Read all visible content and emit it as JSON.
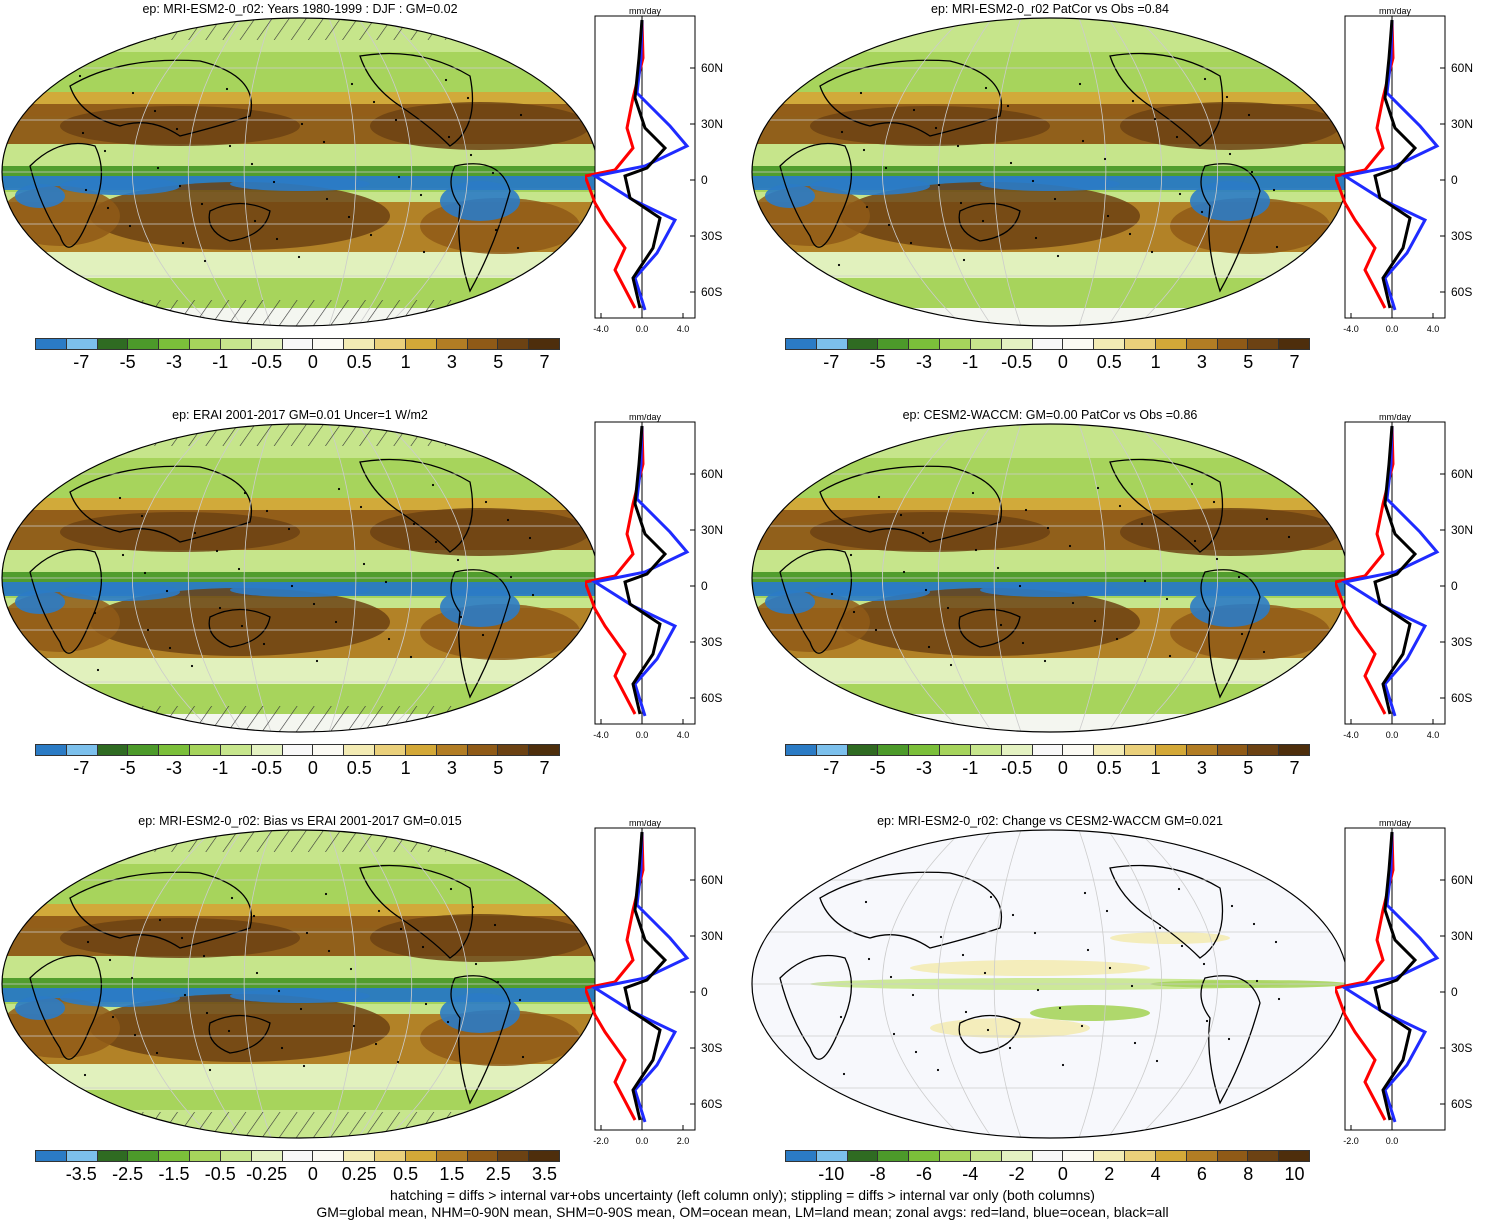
{
  "colorbar_colors": [
    "#2b7bc5",
    "#7cc0ec",
    "#2f6b22",
    "#4c9a2a",
    "#7bbf3a",
    "#a6d45c",
    "#c7e68d",
    "#e4f2c2",
    "#f8f8f8",
    "#fbfaf3",
    "#f3ebb4",
    "#ead07b",
    "#d3a838",
    "#b27d24",
    "#8f5a17",
    "#6c4213",
    "#4e2e0c"
  ],
  "legend": {
    "hatching": "hatching = diffs > internal var+obs uncertainty (left column only); stippling = diffs > internal var only (both columns)",
    "means": "GM=global mean, NHM=0-90N mean, SHM=0-90S mean, OM=ocean mean, LM=land mean; zonal avgs: red=land, blue=ocean, black=all"
  },
  "lat_labels": [
    "60N",
    "30N",
    "0",
    "30S",
    "60S"
  ],
  "zonal_unit": "mm/day",
  "panels": [
    {
      "title": "ep: MRI-ESM2-0_r02: Years 1980-1999 : DJF : GM=0.02",
      "colorbar_labels": [
        "-7",
        "-5",
        "-3",
        "-1",
        "-0.5",
        "0",
        "0.5",
        "1",
        "3",
        "5",
        "7"
      ],
      "x_ticks": [
        "-4.0",
        "0.0",
        "4.0"
      ]
    },
    {
      "title": "ep: MRI-ESM2-0_r02 PatCor vs Obs =0.84",
      "colorbar_labels": [
        "-7",
        "-5",
        "-3",
        "-1",
        "-0.5",
        "0",
        "0.5",
        "1",
        "3",
        "5",
        "7"
      ],
      "x_ticks": [
        "-4.0",
        "0.0",
        "4.0"
      ]
    },
    {
      "title": "ep: ERAI 2001-2017 GM=0.01 Uncer=1 W/m2",
      "colorbar_labels": [
        "-7",
        "-5",
        "-3",
        "-1",
        "-0.5",
        "0",
        "0.5",
        "1",
        "3",
        "5",
        "7"
      ],
      "x_ticks": [
        "-4.0",
        "0.0",
        "4.0"
      ]
    },
    {
      "title": "ep: CESM2-WACCM: GM=0.00 PatCor vs Obs =0.86",
      "colorbar_labels": [
        "-7",
        "-5",
        "-3",
        "-1",
        "-0.5",
        "0",
        "0.5",
        "1",
        "3",
        "5",
        "7"
      ],
      "x_ticks": [
        "-4.0",
        "0.0",
        "4.0"
      ]
    },
    {
      "title": "ep: MRI-ESM2-0_r02: Bias vs ERAI 2001-2017 GM=0.015",
      "colorbar_labels": [
        "-3.5",
        "-2.5",
        "-1.5",
        "-0.5",
        "-0.25",
        "0",
        "0.25",
        "0.5",
        "1.5",
        "2.5",
        "3.5"
      ],
      "x_ticks": [
        "-2.0",
        "0.0",
        "2.0"
      ]
    },
    {
      "title": "ep: MRI-ESM2-0_r02: Change vs CESM2-WACCM GM=0.021",
      "colorbar_labels": [
        "-10",
        "-8",
        "-6",
        "-4",
        "-2",
        "0",
        "2",
        "4",
        "6",
        "8",
        "10"
      ],
      "x_ticks": [
        "-2.0",
        "0.0"
      ]
    }
  ]
}
